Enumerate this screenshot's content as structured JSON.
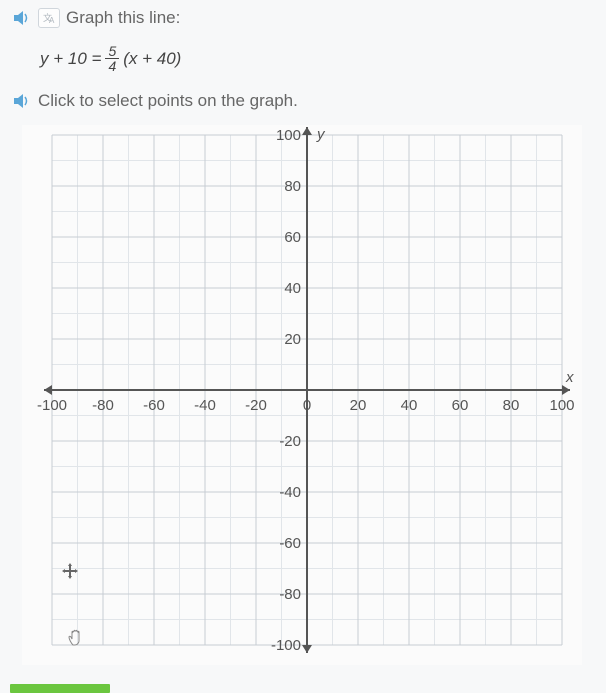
{
  "header": {
    "title": "Graph this line:"
  },
  "equation": {
    "lhs": "y + 10 = ",
    "frac_num": "5",
    "frac_den": "4",
    "rhs": "(x + 40)"
  },
  "instruction": "Click to select points on the graph.",
  "graph": {
    "type": "scatter-grid",
    "background_color": "#fbfbfb",
    "grid_color": "#c7cdd3",
    "grid_color_minor": "#e1e5e9",
    "axis_color": "#555555",
    "xlim": [
      -100,
      100
    ],
    "ylim": [
      -100,
      100
    ],
    "major_step": 20,
    "minor_step": 10,
    "x_ticks": [
      -100,
      -80,
      -60,
      -40,
      -20,
      0,
      20,
      40,
      60,
      80,
      100
    ],
    "y_ticks": [
      -100,
      -80,
      -60,
      -40,
      -20,
      20,
      40,
      60,
      80,
      100
    ],
    "x_axis_label": "x",
    "y_axis_label": "y",
    "tick_fontsize": 15,
    "axis_label_fontsize": 15
  },
  "colors": {
    "speaker": "#5aa6d8",
    "text": "#555555",
    "green_bar": "#6bc63f"
  }
}
